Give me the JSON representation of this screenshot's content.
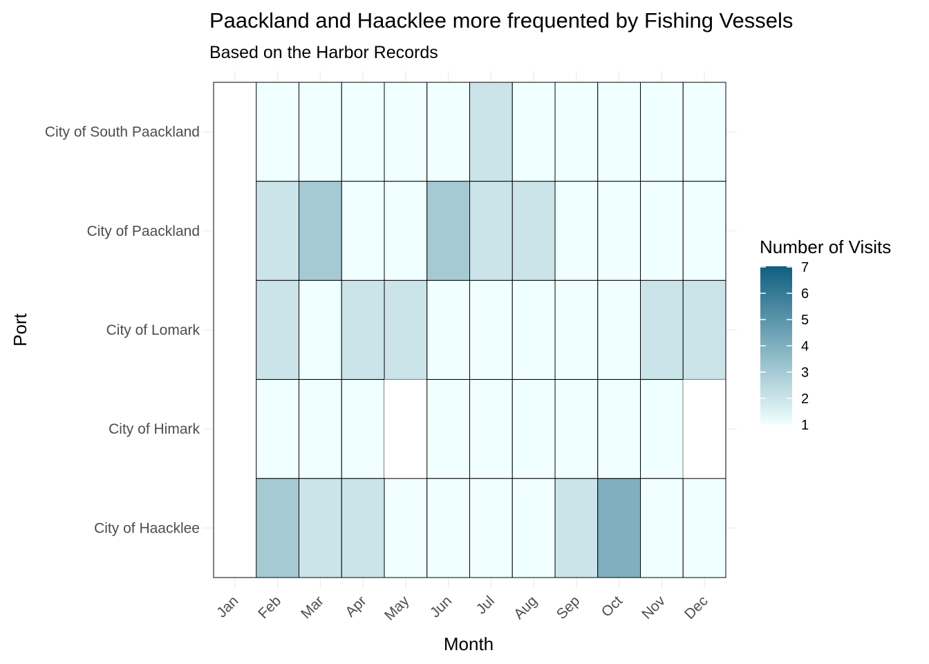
{
  "chart_data": {
    "type": "heatmap",
    "title": "Paackland and Haacklee more frequented by Fishing Vessels",
    "subtitle": "Based on the Harbor Records",
    "xlabel": "Month",
    "ylabel": "Port",
    "x_categories": [
      "Jan",
      "Feb",
      "Mar",
      "Apr",
      "May",
      "Jun",
      "Jul",
      "Aug",
      "Sep",
      "Oct",
      "Nov",
      "Dec"
    ],
    "y_categories": [
      "City of South Paackland",
      "City of Paackland",
      "City of Lomark",
      "City of Himark",
      "City of Haacklee"
    ],
    "values": [
      [
        null,
        1,
        1,
        1,
        1,
        1,
        2,
        1,
        1,
        1,
        1,
        1
      ],
      [
        null,
        2,
        3,
        1,
        1,
        3,
        2,
        2,
        1,
        1,
        1,
        1
      ],
      [
        null,
        2,
        1,
        2,
        2,
        1,
        1,
        1,
        1,
        1,
        2,
        2
      ],
      [
        null,
        1,
        1,
        1,
        null,
        1,
        1,
        1,
        1,
        1,
        1,
        null
      ],
      [
        null,
        3,
        2,
        2,
        1,
        1,
        1,
        1,
        2,
        4,
        1,
        1
      ]
    ],
    "legend": {
      "title": "Number of Visits",
      "min": 1,
      "max": 7,
      "ticks": [
        "1",
        "2",
        "3",
        "4",
        "5",
        "6",
        "7"
      ],
      "position": "right"
    },
    "colors": {
      "low": "#f0ffff",
      "high": "#0f5f7f",
      "missing": "#ffffff",
      "tile_border": "#000000",
      "grid": "#ebebeb"
    },
    "grid": true
  }
}
